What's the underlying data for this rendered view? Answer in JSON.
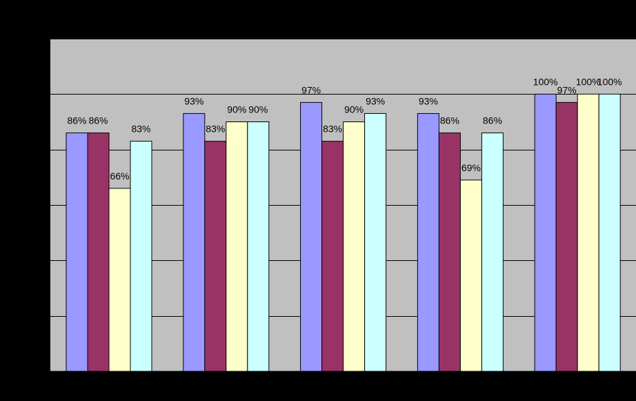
{
  "chart_data": {
    "type": "bar",
    "title": "",
    "xlabel": "",
    "ylabel": "",
    "categories": [
      "",
      "",
      "",
      "",
      ""
    ],
    "ylim": [
      0,
      1.2
    ],
    "grid": true,
    "legend": "none",
    "series": [
      {
        "color": "#9999ff",
        "values": [
          0.86,
          0.93,
          0.97,
          0.93,
          1.0
        ],
        "labels": [
          "86%",
          "93%",
          "97%",
          "93%",
          "100%"
        ]
      },
      {
        "color": "#993366",
        "values": [
          0.86,
          0.83,
          0.83,
          0.86,
          0.97
        ],
        "labels": [
          "86%",
          "83%",
          "83%",
          "86%",
          "97%"
        ]
      },
      {
        "color": "#ffffcc",
        "values": [
          0.66,
          0.9,
          0.9,
          0.69,
          1.0
        ],
        "labels": [
          "66%",
          "90%",
          "90%",
          "69%",
          "100%"
        ]
      },
      {
        "color": "#ccffff",
        "values": [
          0.83,
          0.9,
          0.93,
          0.86,
          1.0
        ],
        "labels": [
          "83%",
          "90%",
          "93%",
          "86%",
          "100%"
        ]
      }
    ],
    "plot_background": "#c0c0c0",
    "page_background": "#000000"
  }
}
